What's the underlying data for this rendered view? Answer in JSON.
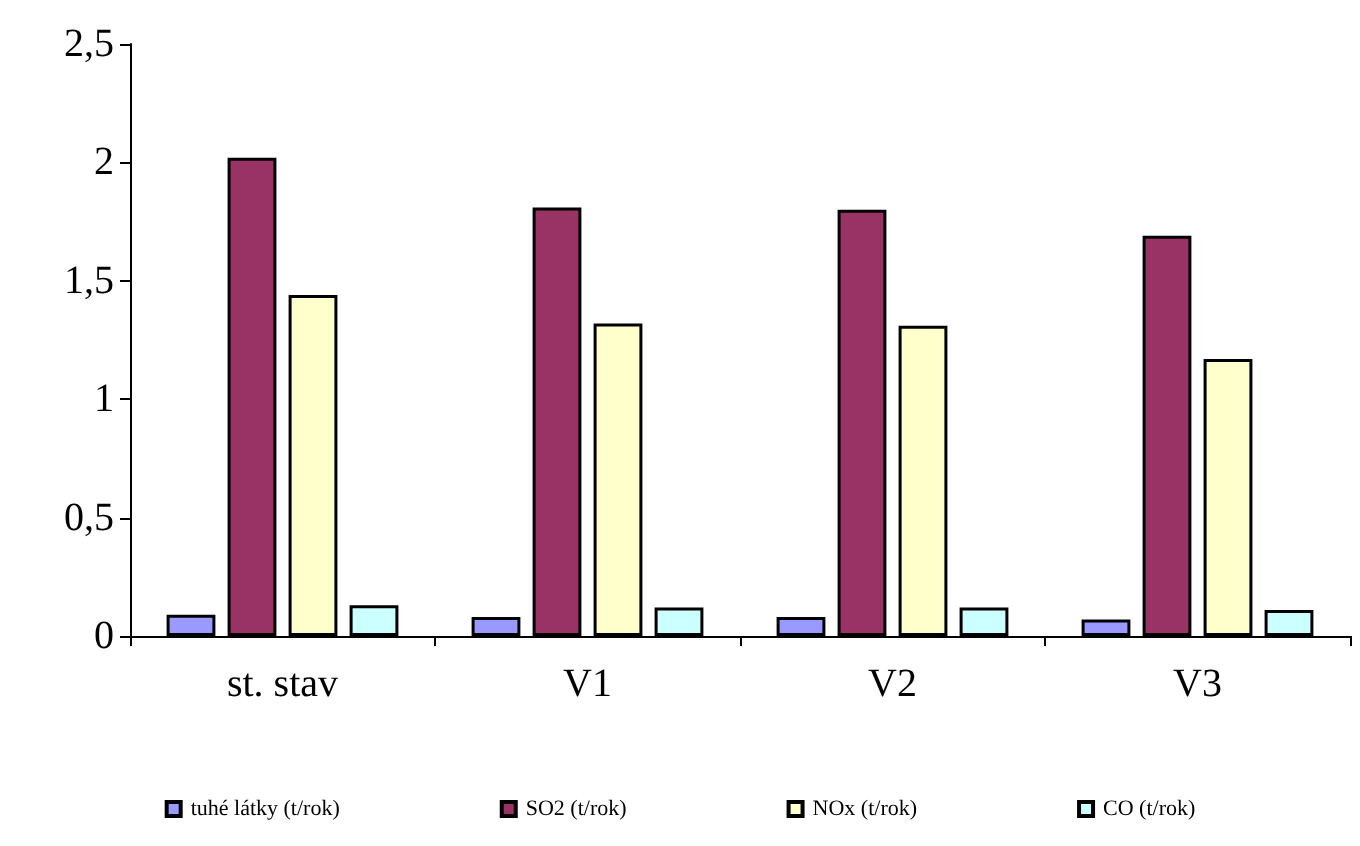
{
  "chart_data": {
    "type": "bar",
    "categories": [
      "st. stav",
      "V1",
      "V2",
      "V3"
    ],
    "series": [
      {
        "name": "tuhé látky (t/rok)",
        "color": "#9999ff",
        "values": [
          0.09,
          0.08,
          0.08,
          0.07
        ]
      },
      {
        "name": "SO2 (t/rok)",
        "color": "#993366",
        "values": [
          2.02,
          1.81,
          1.8,
          1.69
        ]
      },
      {
        "name": "NOx (t/rok)",
        "color": "#ffffcc",
        "values": [
          1.44,
          1.32,
          1.31,
          1.17
        ]
      },
      {
        "name": "CO (t/rok)",
        "color": "#ccffff",
        "values": [
          0.13,
          0.12,
          0.12,
          0.11
        ]
      }
    ],
    "ylim": [
      0,
      2.5
    ],
    "yticks": [
      0,
      {
        "value": 0.5,
        "label": "0,5"
      },
      1,
      {
        "value": 1.5,
        "label": "1,5"
      },
      2,
      {
        "value": 2.5,
        "label": "2,5"
      }
    ],
    "grid": false,
    "legend": "bottom"
  }
}
